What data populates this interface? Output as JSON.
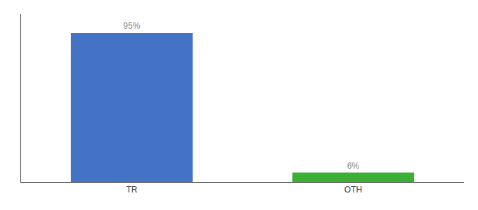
{
  "chart_data": {
    "type": "bar",
    "categories": [
      "TR",
      "OTH"
    ],
    "values": [
      95,
      6
    ],
    "value_labels": [
      "95%",
      "6%"
    ],
    "colors": [
      "#4472c4",
      "#3cb034"
    ],
    "ylim": [
      0,
      107
    ],
    "yticks": [],
    "data_labels": true,
    "tick_labels": "x",
    "grid": false
  }
}
